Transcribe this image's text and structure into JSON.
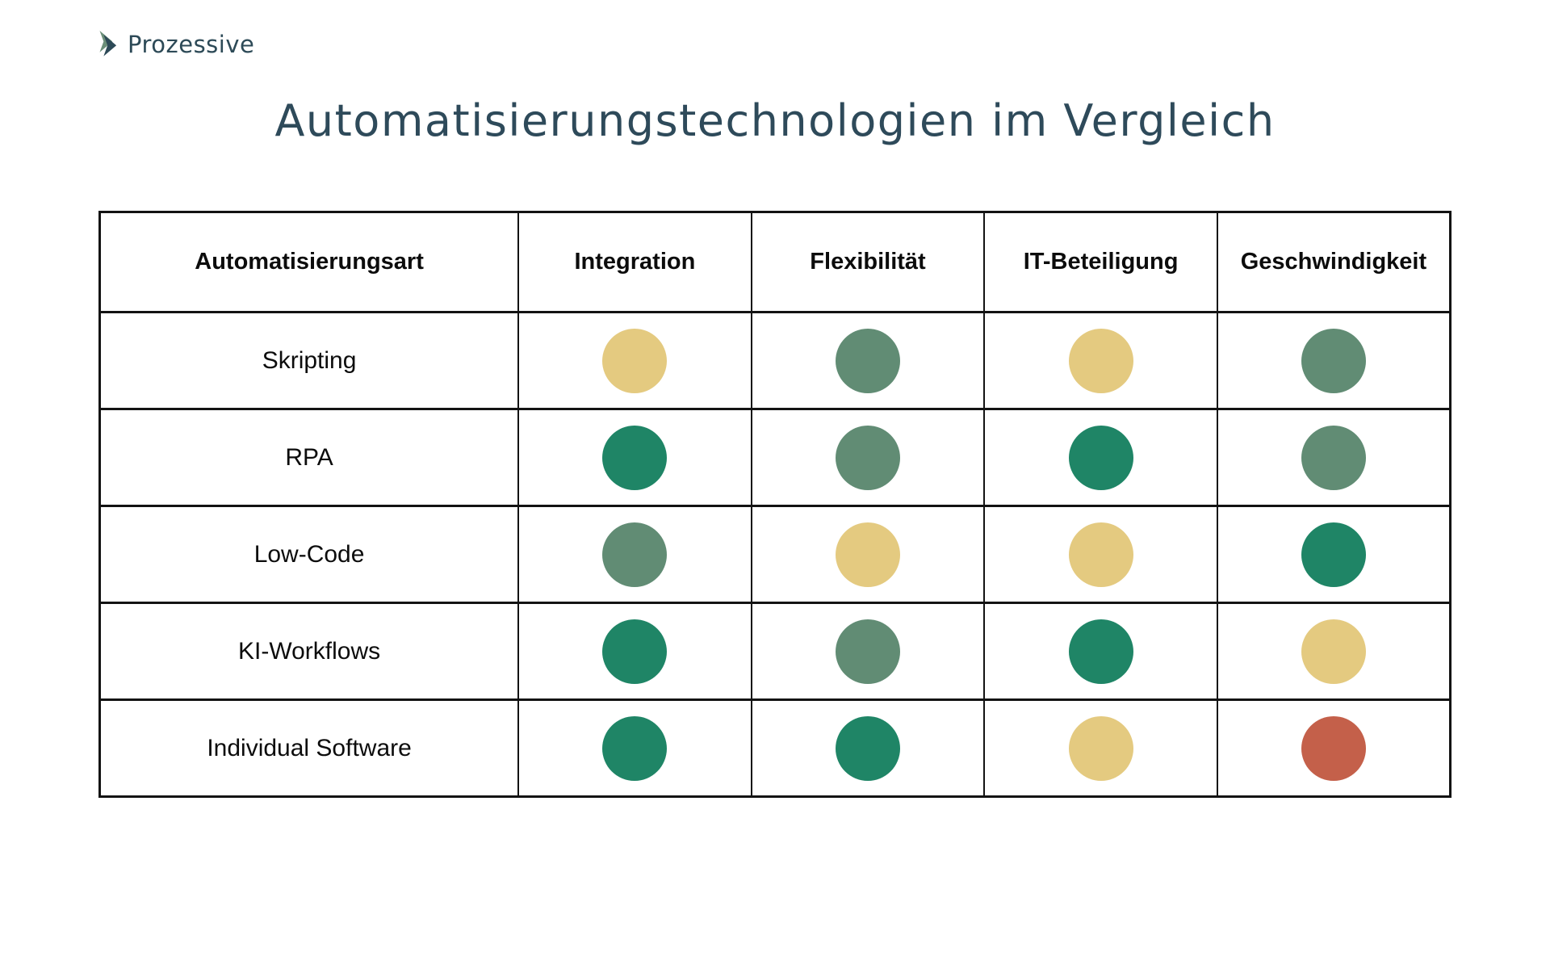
{
  "logo": {
    "icon": "double-chevron-right-icon",
    "text": "Prozessive"
  },
  "title": "Automatisierungstechnologien im Vergleich",
  "colors": {
    "title_text": "#2e4a5a",
    "logo_text": "#2d4a57",
    "logo_chevron_front": "#2d4a57",
    "logo_chevron_back": "#6b8f79",
    "table_border": "#131313",
    "rating_good": "#1f8566",
    "rating_medium": "#618c74",
    "rating_fair": "#e4ca80",
    "rating_poor": "#c4604a"
  },
  "chart_data": {
    "type": "table",
    "title": "Automatisierungstechnologien im Vergleich",
    "columns": [
      "Automatisierungsart",
      "Integration",
      "Flexibilität",
      "IT-Beteiligung",
      "Geschwindigkeit"
    ],
    "rows": [
      {
        "label": "Skripting",
        "ratings": [
          "fair",
          "medium",
          "fair",
          "medium"
        ]
      },
      {
        "label": "RPA",
        "ratings": [
          "good",
          "medium",
          "good",
          "medium"
        ]
      },
      {
        "label": "Low-Code",
        "ratings": [
          "medium",
          "fair",
          "fair",
          "good"
        ]
      },
      {
        "label": "KI-Workflows",
        "ratings": [
          "good",
          "medium",
          "good",
          "fair"
        ]
      },
      {
        "label": "Individual Software",
        "ratings": [
          "good",
          "good",
          "fair",
          "poor"
        ]
      }
    ],
    "rating_scale": {
      "good": "#1f8566",
      "medium": "#618c74",
      "fair": "#e4ca80",
      "poor": "#c4604a"
    },
    "legend_note": "dot colors encode rating level: good (dark green), medium (sage green), fair (yellow), poor (red)"
  }
}
